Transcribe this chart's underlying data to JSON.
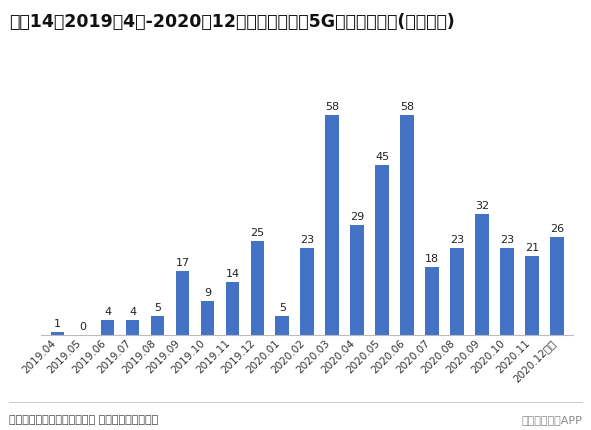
{
  "title": "图表14：2019年4月-2020年12月中国通过认证5G手机机型数量(单位：款)",
  "categories": [
    "2019.04",
    "2019.05",
    "2019.06",
    "2019.07",
    "2019.08",
    "2019.09",
    "2019.10",
    "2019.11",
    "2019.12",
    "2020.01",
    "2020.02",
    "2020.03",
    "2020.04",
    "2020.05",
    "2020.06",
    "2020.07",
    "2020.08",
    "2020.09",
    "2020.10",
    "2020.11",
    "2020.12中旬"
  ],
  "values": [
    1,
    0,
    4,
    4,
    5,
    17,
    9,
    14,
    25,
    5,
    23,
    58,
    29,
    45,
    58,
    18,
    23,
    32,
    23,
    21,
    26
  ],
  "bar_color": "#4472C4",
  "background_color": "#FFFFFF",
  "footnote": "资料来源：中国质量认证中心 前瞻产业研究院整理",
  "footnote_right": "前瞻经济学人APP",
  "title_fontsize": 12.5,
  "label_fontsize": 8,
  "tick_fontsize": 7.5,
  "footnote_fontsize": 8
}
